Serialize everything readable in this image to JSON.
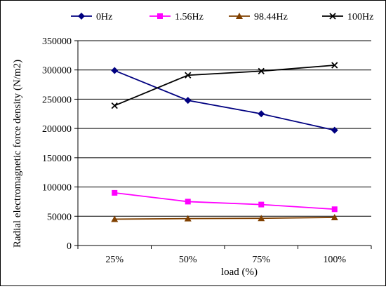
{
  "chart_data": {
    "type": "line",
    "title": "",
    "xlabel": "load  (%)",
    "ylabel": "Radial electromagnetic force density   (N/m2)",
    "categories": [
      "25%",
      "50%",
      "75%",
      "100%"
    ],
    "ylim": [
      0,
      350000
    ],
    "yticks": [
      0,
      50000,
      100000,
      150000,
      200000,
      250000,
      300000,
      350000
    ],
    "ytick_labels": [
      "0",
      "50000",
      "100000",
      "150000",
      "200000",
      "250000",
      "300000",
      "350000"
    ],
    "grid": "horizontal",
    "legend_position": "top",
    "series": [
      {
        "name": "0Hz",
        "values": [
          299000,
          248000,
          225000,
          197000
        ],
        "color": "#000080",
        "marker": "diamond"
      },
      {
        "name": "1.56Hz",
        "values": [
          90000,
          75000,
          70000,
          62000
        ],
        "color": "#ff00ff",
        "marker": "square"
      },
      {
        "name": "98.44Hz",
        "values": [
          45000,
          46000,
          46500,
          48000
        ],
        "color": "#804000",
        "marker": "triangle"
      },
      {
        "name": "100Hz",
        "values": [
          239000,
          291000,
          298000,
          308000
        ],
        "color": "#000000",
        "marker": "x"
      }
    ]
  }
}
